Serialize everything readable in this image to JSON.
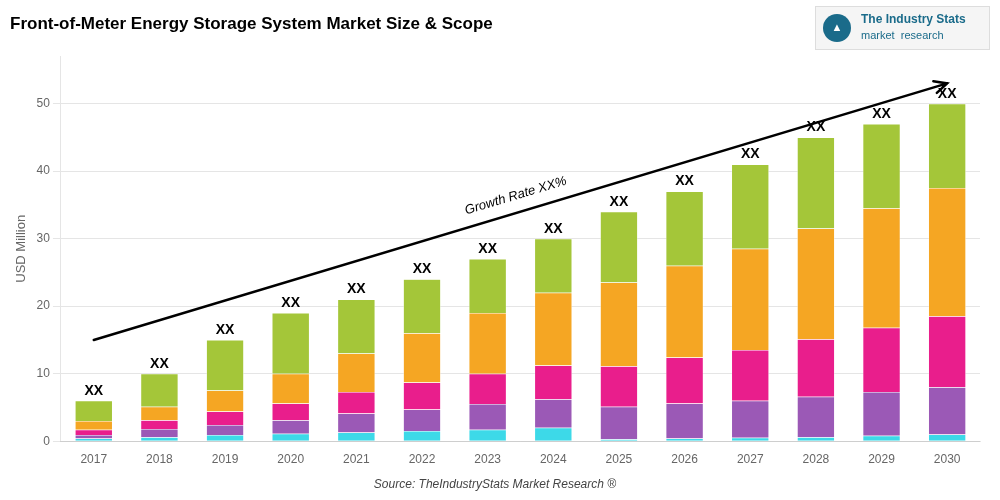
{
  "chart_data": {
    "type": "bar",
    "stacked": true,
    "title": "Front-of-Meter Energy Storage System Market Size & Scope",
    "ylabel": "USD Million",
    "source": "Source: TheIndustryStats Market Research ®",
    "categories": [
      "2017",
      "2018",
      "2019",
      "2020",
      "2021",
      "2022",
      "2023",
      "2024",
      "2025",
      "2026",
      "2027",
      "2028",
      "2029",
      "2030"
    ],
    "series": [
      {
        "color": "#3dd9e8",
        "values": [
          0.4,
          0.6,
          0.9,
          1.1,
          1.3,
          1.5,
          1.7,
          2.0,
          0.3,
          0.4,
          0.5,
          0.6,
          0.8,
          1.0
        ]
      },
      {
        "color": "#9b59b6",
        "values": [
          0.5,
          1.2,
          1.5,
          2.0,
          2.8,
          3.2,
          3.8,
          4.2,
          4.8,
          5.2,
          5.5,
          6.0,
          6.5,
          7.0
        ]
      },
      {
        "color": "#e91e8c",
        "values": [
          0.8,
          1.3,
          2.0,
          2.5,
          3.2,
          4.0,
          4.5,
          5.0,
          6.0,
          6.8,
          7.5,
          8.5,
          9.5,
          10.5
        ]
      },
      {
        "color": "#f5a623",
        "values": [
          1.3,
          2.0,
          3.1,
          4.4,
          5.7,
          7.3,
          9.0,
          10.8,
          12.4,
          13.6,
          15.0,
          16.4,
          17.7,
          19.0
        ]
      },
      {
        "color": "#a4c639",
        "values": [
          3.0,
          4.9,
          7.5,
          9.0,
          8.0,
          8.0,
          8.0,
          8.0,
          10.5,
          11.0,
          12.5,
          13.5,
          12.5,
          12.5
        ]
      }
    ],
    "annotations": [
      {
        "text": "XX",
        "x": "2017",
        "y": 6
      },
      {
        "text": "XX",
        "x": "2018",
        "y": 10
      },
      {
        "text": "XX",
        "x": "2019",
        "y": 15
      },
      {
        "text": "XX",
        "x": "2020",
        "y": 19
      },
      {
        "text": "XX",
        "x": "2021",
        "y": 21
      },
      {
        "text": "XX",
        "x": "2022",
        "y": 24
      },
      {
        "text": "XX",
        "x": "2023",
        "y": 27
      },
      {
        "text": "XX",
        "x": "2024",
        "y": 30
      },
      {
        "text": "XX",
        "x": "2025",
        "y": 34
      },
      {
        "text": "XX",
        "x": "2026",
        "y": 37
      },
      {
        "text": "XX",
        "x": "2027",
        "y": 41
      },
      {
        "text": "XX",
        "x": "2028",
        "y": 45
      },
      {
        "text": "XX",
        "x": "2029",
        "y": 47
      },
      {
        "text": "XX",
        "x": "2030",
        "y": 50
      }
    ],
    "arrow": {
      "text": "Growth Rate XX%",
      "from": {
        "x": "2017",
        "y": 15.0
      },
      "to": {
        "x": "2030",
        "y": 53.0
      }
    },
    "logo": {
      "icon": "▲",
      "lines": [
        "The Industry Stats",
        "market  research"
      ],
      "color": "#1a6b8a"
    },
    "ylim": [
      0,
      57
    ],
    "yticks": [
      0,
      10,
      20,
      30,
      40,
      50
    ],
    "grid": true,
    "legend": false
  }
}
